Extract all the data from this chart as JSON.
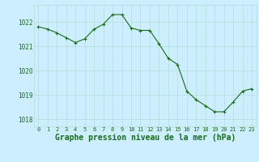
{
  "x": [
    0,
    1,
    2,
    3,
    4,
    5,
    6,
    7,
    8,
    9,
    10,
    11,
    12,
    13,
    14,
    15,
    16,
    17,
    18,
    19,
    20,
    21,
    22,
    23
  ],
  "y": [
    1021.8,
    1021.7,
    1021.55,
    1021.35,
    1021.15,
    1021.3,
    1021.7,
    1021.9,
    1022.3,
    1022.3,
    1021.75,
    1021.65,
    1021.65,
    1021.1,
    1020.5,
    1020.25,
    1019.15,
    1018.8,
    1018.55,
    1018.3,
    1018.3,
    1018.7,
    1019.15,
    1019.25
  ],
  "line_color": "#1a6b1a",
  "marker": "+",
  "marker_size": 3,
  "bg_color": "#cceeff",
  "grid_color": "#aaddcc",
  "xlabel": "Graphe pression niveau de la mer (hPa)",
  "xlabel_color": "#1a6b1a",
  "ytick_labels": [
    "1018",
    "1019",
    "1020",
    "1021",
    "1022"
  ],
  "ytick_vals": [
    1018,
    1019,
    1020,
    1021,
    1022
  ],
  "ylim": [
    1017.7,
    1022.7
  ],
  "xlim": [
    -0.5,
    23.5
  ],
  "xtick_fontsize": 5.0,
  "ytick_fontsize": 5.5,
  "xlabel_fontsize": 7.0,
  "line_width": 0.8
}
